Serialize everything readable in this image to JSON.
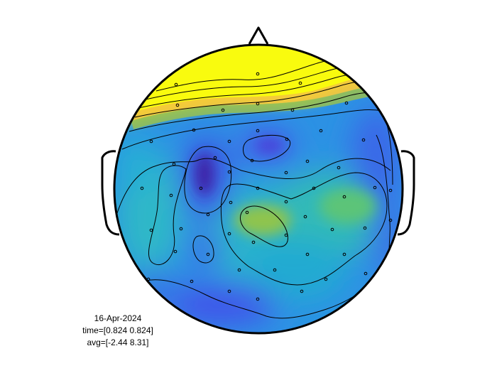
{
  "figure": {
    "date": "16-Apr-2024",
    "time": "time=[0.824 0.824]",
    "avg": "avg=[-2.44 8.31]"
  },
  "colors": {
    "outline": "#000000",
    "background": "#ffffff",
    "colormap": [
      "#3d26a8",
      "#4354e8",
      "#2f8ce5",
      "#17afd2",
      "#3bc38c",
      "#a6c23b",
      "#fba934",
      "#f5e41c",
      "#f9fb0e"
    ]
  },
  "icons": [
    "nose-triangle",
    "left-ear",
    "right-ear"
  ]
}
